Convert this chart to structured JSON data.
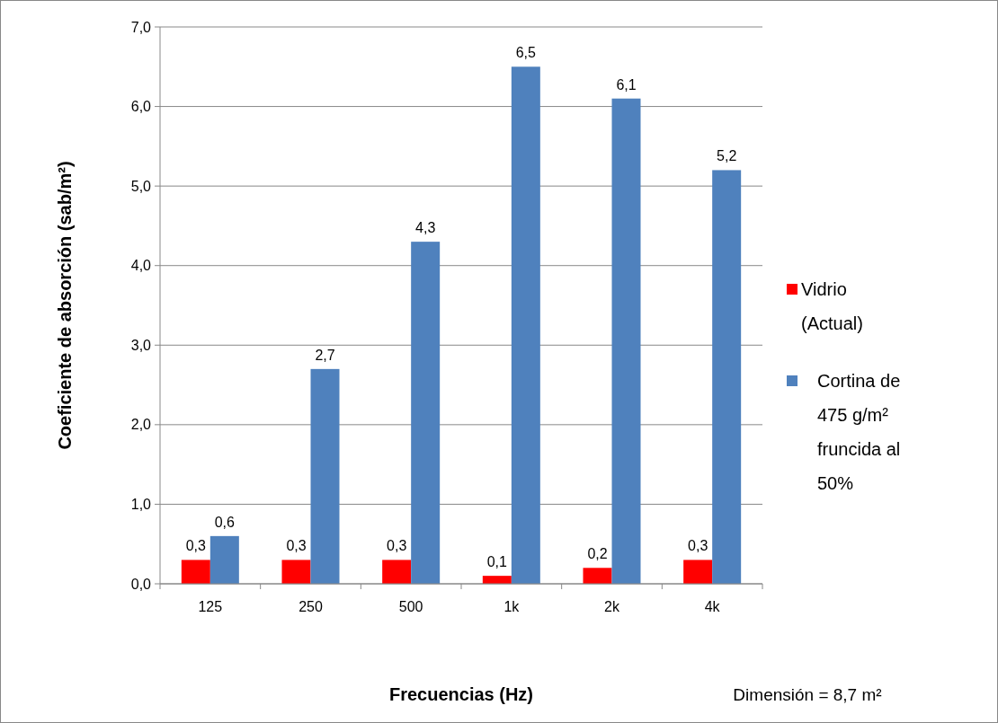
{
  "chart_data": {
    "type": "bar",
    "xlabel": "Frecuencias (Hz)",
    "ylabel": "Coeficiente de absorción (sab/m²)",
    "annotations": [
      "Dimensión = 8,7 m²"
    ],
    "categories": [
      "125",
      "250",
      "500",
      "1k",
      "2k",
      "4k"
    ],
    "series": [
      {
        "name": "Vidrio (Actual)",
        "color": "#ff0000",
        "values": [
          0.3,
          0.3,
          0.3,
          0.1,
          0.2,
          0.3
        ],
        "value_labels": [
          "0,3",
          "0,3",
          "0,3",
          "0,1",
          "0,2",
          "0,3"
        ]
      },
      {
        "name": "Cortina de 475 g/m² fruncida al 50%",
        "color": "#4f81bd",
        "values": [
          0.6,
          2.7,
          4.3,
          6.5,
          6.1,
          5.2
        ],
        "value_labels": [
          "0,6",
          "2,7",
          "4,3",
          "6,5",
          "6,1",
          "5,2"
        ]
      }
    ],
    "ylim": [
      0,
      7
    ],
    "yticks": [
      {
        "value": 0,
        "label": "0,0"
      },
      {
        "value": 1,
        "label": "1,0"
      },
      {
        "value": 2,
        "label": "2,0"
      },
      {
        "value": 3,
        "label": "3,0"
      },
      {
        "value": 4,
        "label": "4,0"
      },
      {
        "value": 5,
        "label": "5,0"
      },
      {
        "value": 6,
        "label": "6,0"
      },
      {
        "value": 7,
        "label": "7,0"
      }
    ],
    "grid": "y",
    "legend": "right"
  }
}
